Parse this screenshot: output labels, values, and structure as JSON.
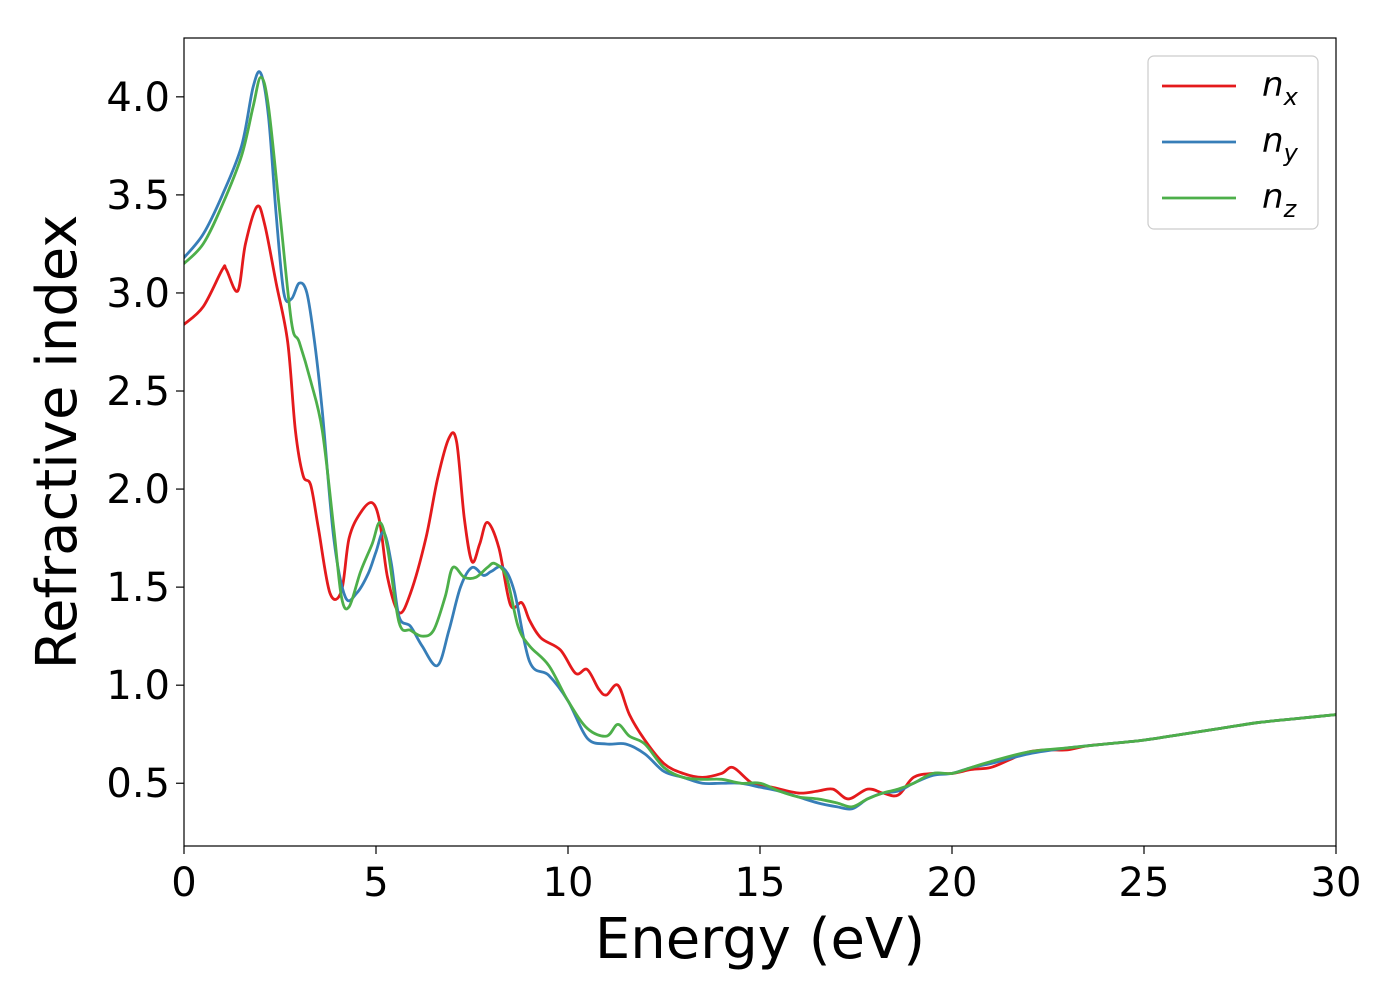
{
  "chart_data": {
    "type": "line",
    "title": "",
    "xlabel": "Energy (eV)",
    "ylabel": "Refractive index",
    "xlim": [
      0,
      30
    ],
    "ylim": [
      0.18,
      4.3
    ],
    "xticks": [
      0,
      5,
      10,
      15,
      20,
      25,
      30
    ],
    "yticks": [
      0.5,
      1.0,
      1.5,
      2.0,
      2.5,
      3.0,
      3.5,
      4.0
    ],
    "xtick_labels": [
      "0",
      "5",
      "10",
      "15",
      "20",
      "25",
      "30"
    ],
    "ytick_labels": [
      "0.5",
      "1.0",
      "1.5",
      "2.0",
      "2.5",
      "3.0",
      "3.5",
      "4.0"
    ],
    "grid": false,
    "legend_position": "top-right",
    "series": [
      {
        "name": "n",
        "subscript": "x",
        "color": "#e41a1c",
        "x": [
          0,
          0.5,
          1.0,
          1.1,
          1.4,
          1.6,
          1.9,
          2.1,
          2.4,
          2.7,
          2.9,
          3.1,
          3.3,
          3.5,
          3.8,
          4.1,
          4.3,
          4.6,
          4.9,
          5.1,
          5.3,
          5.6,
          5.9,
          6.3,
          6.6,
          6.9,
          7.1,
          7.3,
          7.5,
          7.7,
          7.9,
          8.2,
          8.5,
          8.8,
          9.0,
          9.3,
          9.8,
          10.2,
          10.5,
          10.8,
          11.0,
          11.3,
          11.6,
          12.0,
          12.5,
          13.0,
          13.5,
          14.0,
          14.3,
          14.8,
          15.3,
          16.0,
          16.5,
          16.9,
          17.3,
          17.8,
          18.2,
          18.6,
          19.0,
          19.5,
          20.0,
          20.5,
          21.0,
          21.5,
          22.0,
          22.5,
          23.0,
          23.5,
          24.0,
          25.0,
          26.0,
          27.0,
          28.0,
          29.0,
          30.0
        ],
        "y": [
          2.84,
          2.93,
          3.12,
          3.12,
          3.01,
          3.25,
          3.44,
          3.35,
          3.05,
          2.75,
          2.3,
          2.07,
          2.02,
          1.8,
          1.47,
          1.48,
          1.75,
          1.88,
          1.93,
          1.83,
          1.55,
          1.37,
          1.47,
          1.75,
          2.05,
          2.26,
          2.24,
          1.85,
          1.63,
          1.72,
          1.83,
          1.7,
          1.41,
          1.42,
          1.33,
          1.24,
          1.18,
          1.06,
          1.08,
          0.98,
          0.95,
          1.0,
          0.85,
          0.72,
          0.6,
          0.55,
          0.53,
          0.55,
          0.58,
          0.5,
          0.48,
          0.45,
          0.46,
          0.47,
          0.42,
          0.47,
          0.45,
          0.44,
          0.53,
          0.55,
          0.55,
          0.57,
          0.58,
          0.62,
          0.66,
          0.67,
          0.67,
          0.69,
          0.7,
          0.72,
          0.75,
          0.78,
          0.81,
          0.83,
          0.85
        ]
      },
      {
        "name": "n",
        "subscript": "y",
        "color": "#377eb8",
        "x": [
          0,
          0.5,
          1.0,
          1.5,
          1.8,
          2.0,
          2.2,
          2.4,
          2.6,
          2.8,
          3.0,
          3.2,
          3.4,
          3.6,
          3.9,
          4.2,
          4.5,
          4.8,
          5.0,
          5.2,
          5.4,
          5.6,
          5.9,
          6.2,
          6.6,
          6.9,
          7.2,
          7.5,
          7.8,
          8.0,
          8.3,
          8.6,
          9.0,
          9.5,
          10.0,
          10.5,
          11.0,
          11.5,
          12.0,
          12.5,
          13.0,
          13.5,
          14.0,
          14.5,
          15.0,
          15.5,
          16.0,
          16.5,
          17.0,
          17.4,
          17.8,
          18.2,
          18.6,
          19.0,
          19.5,
          20.0,
          20.5,
          21.0,
          22.0,
          23.0,
          24.0,
          25.0,
          26.0,
          27.0,
          28.0,
          29.0,
          30.0
        ],
        "y": [
          3.18,
          3.3,
          3.5,
          3.75,
          4.05,
          4.12,
          3.9,
          3.4,
          3.0,
          2.97,
          3.05,
          3.0,
          2.75,
          2.4,
          1.75,
          1.45,
          1.47,
          1.57,
          1.68,
          1.78,
          1.62,
          1.35,
          1.3,
          1.2,
          1.1,
          1.28,
          1.5,
          1.6,
          1.56,
          1.58,
          1.6,
          1.48,
          1.12,
          1.05,
          0.92,
          0.73,
          0.7,
          0.7,
          0.65,
          0.56,
          0.53,
          0.5,
          0.5,
          0.5,
          0.48,
          0.46,
          0.43,
          0.4,
          0.38,
          0.37,
          0.42,
          0.45,
          0.46,
          0.5,
          0.54,
          0.55,
          0.58,
          0.6,
          0.65,
          0.68,
          0.7,
          0.72,
          0.75,
          0.78,
          0.81,
          0.83,
          0.85
        ]
      },
      {
        "name": "n",
        "subscript": "z",
        "color": "#4daf4a",
        "x": [
          0,
          0.5,
          1.0,
          1.5,
          1.8,
          2.0,
          2.2,
          2.5,
          2.8,
          3.0,
          3.3,
          3.6,
          3.9,
          4.1,
          4.3,
          4.6,
          4.9,
          5.1,
          5.3,
          5.6,
          5.9,
          6.2,
          6.5,
          6.8,
          7.0,
          7.3,
          7.6,
          7.9,
          8.1,
          8.4,
          8.7,
          9.0,
          9.5,
          10.0,
          10.5,
          11.0,
          11.3,
          11.6,
          12.0,
          12.5,
          13.0,
          13.5,
          14.0,
          14.5,
          15.0,
          15.5,
          16.0,
          16.5,
          17.0,
          17.4,
          17.8,
          18.2,
          18.6,
          19.0,
          19.5,
          20.0,
          20.5,
          21.0,
          22.0,
          23.0,
          24.0,
          25.0,
          26.0,
          27.0,
          28.0,
          29.0,
          30.0
        ],
        "y": [
          3.15,
          3.25,
          3.45,
          3.7,
          3.95,
          4.1,
          3.95,
          3.4,
          2.85,
          2.75,
          2.55,
          2.3,
          1.8,
          1.45,
          1.4,
          1.58,
          1.72,
          1.83,
          1.7,
          1.32,
          1.28,
          1.25,
          1.28,
          1.45,
          1.6,
          1.55,
          1.55,
          1.6,
          1.62,
          1.55,
          1.3,
          1.2,
          1.1,
          0.92,
          0.78,
          0.74,
          0.8,
          0.74,
          0.7,
          0.58,
          0.53,
          0.52,
          0.52,
          0.5,
          0.5,
          0.46,
          0.43,
          0.42,
          0.4,
          0.38,
          0.42,
          0.45,
          0.47,
          0.5,
          0.55,
          0.55,
          0.58,
          0.61,
          0.66,
          0.68,
          0.7,
          0.72,
          0.75,
          0.78,
          0.81,
          0.83,
          0.85
        ]
      }
    ]
  }
}
